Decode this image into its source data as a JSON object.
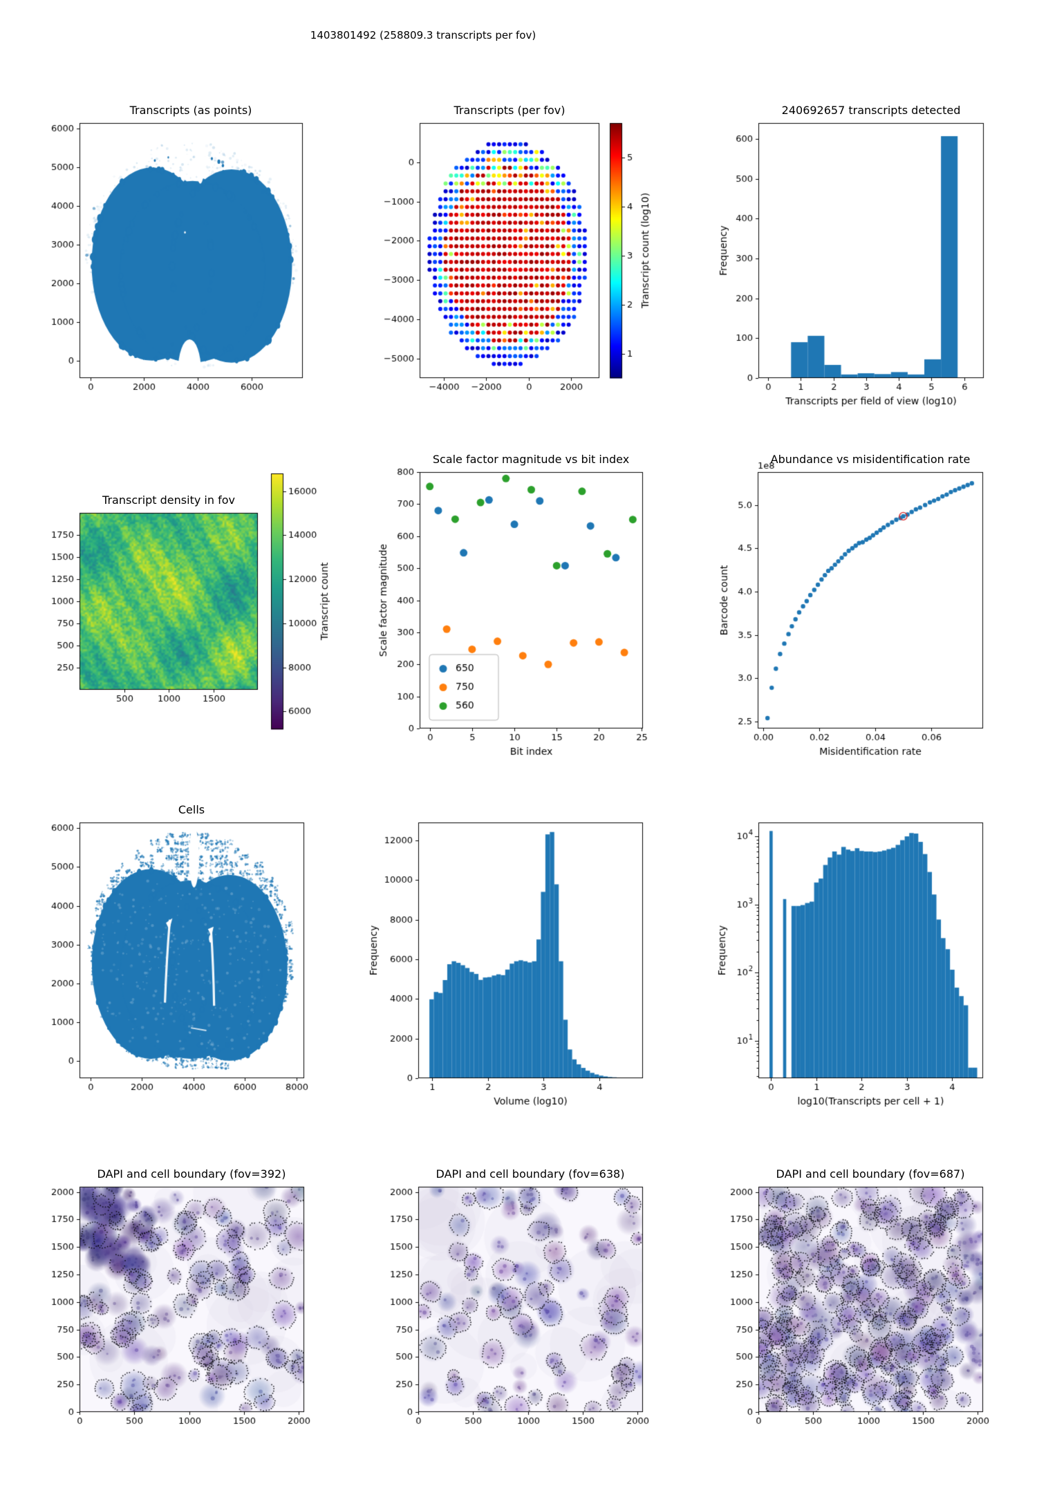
{
  "suptitle": "1403801492 (258809.3 transcripts per fov)",
  "colors": {
    "primary": "#1f77b4",
    "orange": "#ff7f0e",
    "green": "#2ca02c",
    "highlight": "#d62728"
  },
  "chart_data": [
    {
      "id": "transcripts_points",
      "type": "scatter",
      "title": "Transcripts (as points)",
      "xlim": [
        -400,
        7900
      ],
      "ylim": [
        -450,
        6150
      ],
      "xticks": [
        0,
        2000,
        4000,
        6000
      ],
      "yticks": [
        0,
        1000,
        2000,
        3000,
        4000,
        5000,
        6000
      ],
      "point_color": "#1f77b4",
      "description": "dense blob of transcript points shaped like a coronal brain slice (x 150-7400, y 100-5000) with a sparse speckle halo around it"
    },
    {
      "id": "transcripts_per_fov",
      "type": "scatter",
      "title": "Transcripts (per fov)",
      "xlim": [
        -5150,
        3350
      ],
      "ylim": [
        -5500,
        1000
      ],
      "xticks": [
        -4000,
        -2000,
        0,
        2000
      ],
      "xtick_labels": [
        "−4000",
        "−2000",
        "0",
        "2000"
      ],
      "yticks": [
        0,
        -1000,
        -2000,
        -3000,
        -4000,
        -5000
      ],
      "ytick_labels": [
        "0",
        "−1000",
        "−2000",
        "−3000",
        "−4000",
        "−5000"
      ],
      "colormap": "jet",
      "colorbar": {
        "label": "Transcript count (log10)",
        "ticks": [
          1,
          2,
          3,
          4,
          5
        ],
        "range": [
          0.5,
          5.7
        ]
      },
      "grid": {
        "x0": -4680,
        "dx": 253,
        "nx": 30,
        "y0": 460,
        "dy": -200,
        "ny": 29,
        "ellipse": {
          "cx": -980,
          "cy": -2330,
          "rx": 3780,
          "ry": 2880
        },
        "interior_log10": 5.4,
        "edge_log10": 1.3
      }
    },
    {
      "id": "transcripts_hist",
      "type": "bar",
      "title": "240692657 transcripts detected",
      "xlabel": "Transcripts per field of view (log10)",
      "ylabel": "Frequency",
      "bin_start": 0.7,
      "bin_width": 0.51,
      "values": [
        90,
        106,
        33,
        9,
        12,
        10,
        15,
        9,
        47,
        607
      ],
      "xlim": [
        -0.3,
        6.6
      ],
      "ylim": [
        0,
        640
      ],
      "xticks": [
        0,
        1,
        2,
        3,
        4,
        5,
        6
      ],
      "yticks": [
        0,
        100,
        200,
        300,
        400,
        500,
        600
      ],
      "bar_color": "#1f77b4"
    },
    {
      "id": "transcript_density",
      "type": "heatmap",
      "title": "Transcript density in fov",
      "xlim": [
        0,
        2000
      ],
      "ylim": [
        0,
        2000
      ],
      "xticks": [
        500,
        1000,
        1500
      ],
      "yticks": [
        250,
        500,
        750,
        1000,
        1250,
        1500,
        1750
      ],
      "colormap": "viridis",
      "colorbar": {
        "label": "Transcript count",
        "ticks": [
          6000,
          8000,
          10000,
          12000,
          14000,
          16000
        ],
        "range": [
          5200,
          16800
        ]
      },
      "value_mean": 13100,
      "value_spread": 1800
    },
    {
      "id": "scale_factor",
      "type": "scatter",
      "title": "Scale factor magnitude vs bit index",
      "xlabel": "Bit index",
      "ylabel": "Scale factor magnitude",
      "xlim": [
        -1.2,
        25.2
      ],
      "ylim": [
        0,
        800
      ],
      "xticks": [
        0,
        5,
        10,
        15,
        20,
        25
      ],
      "yticks": [
        0,
        100,
        200,
        300,
        400,
        500,
        600,
        700,
        800
      ],
      "series": [
        {
          "name": "650",
          "color": "#1f77b4",
          "points": [
            [
              1,
              680
            ],
            [
              4,
              548
            ],
            [
              7,
              713
            ],
            [
              10,
              637
            ],
            [
              13,
              710
            ],
            [
              16,
              508
            ],
            [
              19,
              632
            ],
            [
              22,
              533
            ]
          ]
        },
        {
          "name": "750",
          "color": "#ff7f0e",
          "points": [
            [
              2,
              310
            ],
            [
              5,
              247
            ],
            [
              8,
              272
            ],
            [
              11,
              227
            ],
            [
              14,
              200
            ],
            [
              17,
              267
            ],
            [
              20,
              270
            ],
            [
              23,
              237
            ]
          ]
        },
        {
          "name": "560",
          "color": "#2ca02c",
          "points": [
            [
              0,
              755
            ],
            [
              3,
              653
            ],
            [
              6,
              705
            ],
            [
              9,
              780
            ],
            [
              12,
              745
            ],
            [
              15,
              508
            ],
            [
              18,
              740
            ],
            [
              21,
              545
            ],
            [
              24,
              652
            ]
          ]
        }
      ],
      "legend": {
        "position": "lower left",
        "labels": [
          "650",
          "750",
          "560"
        ]
      }
    },
    {
      "id": "abundance",
      "type": "scatter",
      "title": "Abundance vs misidentification rate",
      "xlabel": "Misidentification rate",
      "ylabel": "Barcode count",
      "offset_text": "1e8",
      "xlim": [
        -0.002,
        0.0785
      ],
      "ylim": [
        2.42,
        5.38
      ],
      "xticks": [
        0.0,
        0.02,
        0.04,
        0.06
      ],
      "xtick_labels": [
        "0.00",
        "0.02",
        "0.04",
        "0.06"
      ],
      "yticks": [
        2.5,
        3.0,
        3.5,
        4.0,
        4.5,
        5.0
      ],
      "ytick_labels": [
        "2.5",
        "3.0",
        "3.5",
        "4.0",
        "4.5",
        "5.0"
      ],
      "point_color": "#1f77b4",
      "highlight_point": [
        0.05,
        4.87
      ],
      "highlight_color": "#d62728",
      "points": [
        [
          0.0015,
          2.54
        ],
        [
          0.003,
          2.89
        ],
        [
          0.0045,
          3.11
        ],
        [
          0.006,
          3.28
        ],
        [
          0.0075,
          3.4
        ],
        [
          0.009,
          3.51
        ],
        [
          0.0102,
          3.6
        ],
        [
          0.0115,
          3.68
        ],
        [
          0.0128,
          3.76
        ],
        [
          0.0142,
          3.83
        ],
        [
          0.0155,
          3.89
        ],
        [
          0.0168,
          3.96
        ],
        [
          0.0182,
          4.02
        ],
        [
          0.0195,
          4.08
        ],
        [
          0.0208,
          4.14
        ],
        [
          0.022,
          4.19
        ],
        [
          0.0232,
          4.24
        ],
        [
          0.0244,
          4.27
        ],
        [
          0.0256,
          4.31
        ],
        [
          0.0268,
          4.35
        ],
        [
          0.028,
          4.39
        ],
        [
          0.0292,
          4.43
        ],
        [
          0.0305,
          4.47
        ],
        [
          0.0318,
          4.5
        ],
        [
          0.033,
          4.53
        ],
        [
          0.0342,
          4.56
        ],
        [
          0.0355,
          4.57
        ],
        [
          0.0368,
          4.6
        ],
        [
          0.038,
          4.62
        ],
        [
          0.0392,
          4.65
        ],
        [
          0.0405,
          4.68
        ],
        [
          0.0418,
          4.71
        ],
        [
          0.043,
          4.74
        ],
        [
          0.0445,
          4.77
        ],
        [
          0.046,
          4.8
        ],
        [
          0.0475,
          4.83
        ],
        [
          0.049,
          4.85
        ],
        [
          0.05,
          4.87
        ],
        [
          0.0515,
          4.89
        ],
        [
          0.053,
          4.92
        ],
        [
          0.0545,
          4.95
        ],
        [
          0.056,
          4.97
        ],
        [
          0.0578,
          5.0
        ],
        [
          0.0595,
          5.03
        ],
        [
          0.061,
          5.05
        ],
        [
          0.0625,
          5.07
        ],
        [
          0.064,
          5.1
        ],
        [
          0.0655,
          5.12
        ],
        [
          0.067,
          5.15
        ],
        [
          0.0685,
          5.17
        ],
        [
          0.07,
          5.19
        ],
        [
          0.0715,
          5.21
        ],
        [
          0.073,
          5.23
        ],
        [
          0.0745,
          5.25
        ]
      ]
    },
    {
      "id": "cells",
      "type": "scatter",
      "title": "Cells",
      "xlim": [
        -430,
        8300
      ],
      "ylim": [
        -450,
        6150
      ],
      "xticks": [
        0,
        2000,
        4000,
        6000,
        8000
      ],
      "yticks": [
        0,
        1000,
        2000,
        3000,
        4000,
        5000,
        6000
      ],
      "point_color": "#1f77b4",
      "description": "brain-shaped dense cell scatter with white ventricle gaps and a checkered grid of sparse fov speckles surrounding the tissue"
    },
    {
      "id": "volume_hist",
      "type": "bar",
      "title": "",
      "xlabel": "Volume (log10)",
      "ylabel": "Frequency",
      "bin_start": 0.95,
      "bin_width": 0.08,
      "values": [
        3980,
        4350,
        4300,
        4950,
        5750,
        5900,
        5820,
        5700,
        5560,
        5360,
        5260,
        4960,
        5080,
        5100,
        5180,
        5240,
        5200,
        5480,
        5780,
        5900,
        5950,
        5900,
        5840,
        5900,
        7000,
        9400,
        12300,
        12420,
        9780,
        5900,
        2950,
        1450,
        950,
        700,
        520,
        380,
        270,
        190,
        130,
        90,
        60,
        45,
        35,
        25
      ],
      "xlim": [
        0.75,
        4.78
      ],
      "ylim": [
        0,
        12900
      ],
      "xticks": [
        1,
        2,
        3,
        4
      ],
      "yticks": [
        0,
        2000,
        4000,
        6000,
        8000,
        10000,
        12000
      ],
      "bar_color": "#1f77b4"
    },
    {
      "id": "transcripts_per_cell_hist",
      "type": "bar",
      "yscale": "log",
      "title": "",
      "xlabel": "log10(Transcripts per cell + 1)",
      "ylabel": "Frequency",
      "xlim": [
        -0.28,
        4.68
      ],
      "ylim": [
        2.8,
        16000
      ],
      "xticks": [
        0,
        1,
        2,
        3,
        4
      ],
      "ytick_exponents": [
        1,
        2,
        3,
        4
      ],
      "isolated_bars": [
        {
          "x": 0.0,
          "width": 0.07,
          "value": 12000
        },
        {
          "x": 0.3,
          "width": 0.07,
          "value": 1200
        }
      ],
      "bin_start": 0.45,
      "bin_width": 0.1,
      "values": [
        950,
        950,
        980,
        1050,
        1100,
        2100,
        2400,
        3800,
        4900,
        6000,
        5400,
        7000,
        6400,
        6100,
        6700,
        6100,
        6000,
        6000,
        5900,
        6000,
        6200,
        6500,
        6800,
        7500,
        8800,
        10000,
        11200,
        11000,
        8300,
        5500,
        3000,
        1400,
        600,
        320,
        220,
        110,
        60,
        45,
        33,
        4,
        4
      ],
      "bar_color": "#1f77b4"
    },
    {
      "id": "dapi_392",
      "type": "image",
      "title": "DAPI and cell boundary (fov=392)",
      "xlim": [
        0,
        2048
      ],
      "ylim": [
        0,
        2048
      ],
      "xticks": [
        0,
        500,
        1000,
        1500,
        2000
      ],
      "yticks": [
        0,
        250,
        500,
        750,
        1000,
        1250,
        1500,
        1750,
        2000
      ],
      "cells": 120,
      "extra_corner_cells": 45,
      "outlined": 95,
      "dense_corner": "top-left",
      "seed": 392
    },
    {
      "id": "dapi_638",
      "type": "image",
      "title": "DAPI and cell boundary (fov=638)",
      "xlim": [
        0,
        2048
      ],
      "ylim": [
        0,
        2048
      ],
      "xticks": [
        0,
        500,
        1000,
        1500,
        2000
      ],
      "yticks": [
        0,
        250,
        500,
        750,
        1000,
        1250,
        1500,
        1750,
        2000
      ],
      "cells": 85,
      "extra_corner_cells": 0,
      "outlined": 52,
      "seed": 638
    },
    {
      "id": "dapi_687",
      "type": "image",
      "title": "DAPI and cell boundary (fov=687)",
      "xlim": [
        0,
        2048
      ],
      "ylim": [
        0,
        2048
      ],
      "xticks": [
        0,
        500,
        1000,
        1500,
        2000
      ],
      "yticks": [
        0,
        250,
        500,
        750,
        1000,
        1250,
        1500,
        1750,
        2000
      ],
      "cells": 275,
      "extra_corner_cells": 0,
      "outlined": 220,
      "seed": 687
    }
  ]
}
